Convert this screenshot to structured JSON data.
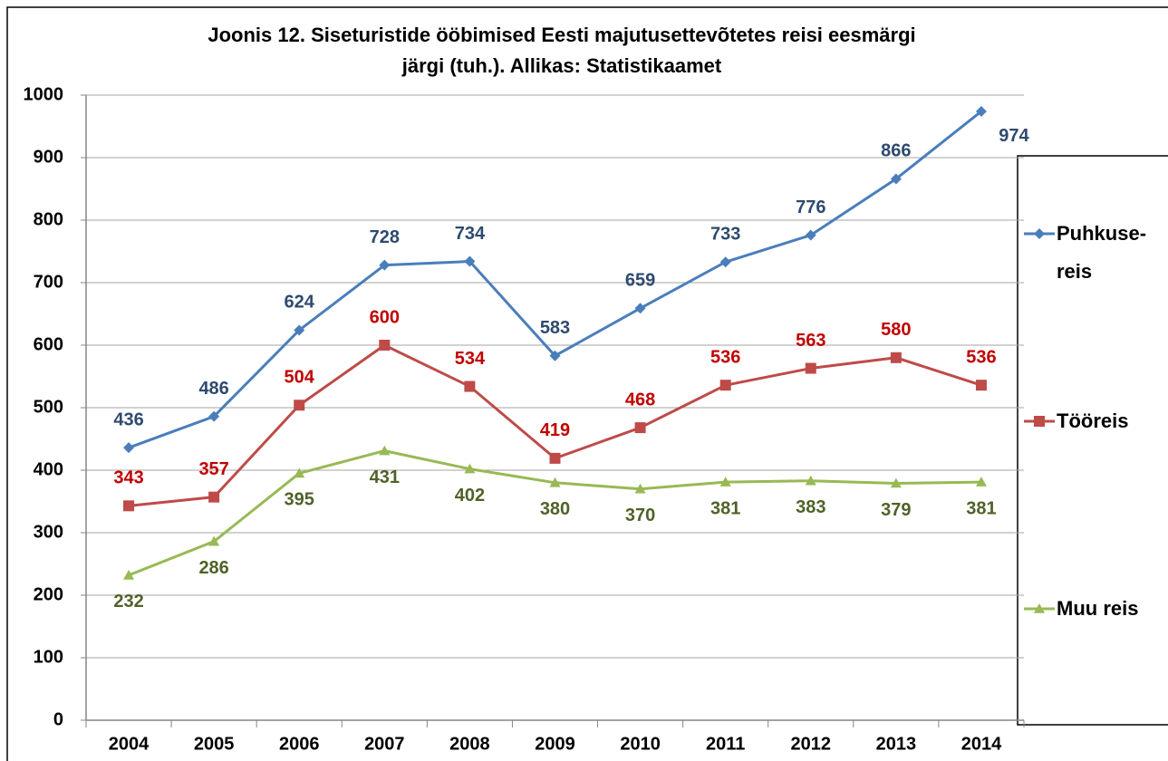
{
  "chart_data": {
    "type": "line",
    "title": "Joonis 12. Siseturistide ööbimised Eesti majutusettevõtetes reisi eesmärgi järgi (tuh.). Allikas: Statistikaamet",
    "categories": [
      "2004",
      "2005",
      "2006",
      "2007",
      "2008",
      "2009",
      "2010",
      "2011",
      "2012",
      "2013",
      "2014"
    ],
    "series": [
      {
        "name": "Puhkuse-reis",
        "color": "#4a7ebb",
        "label_color": "#2e4a6e",
        "marker": "diamond",
        "values": [
          436,
          486,
          624,
          728,
          734,
          583,
          659,
          733,
          776,
          866,
          974
        ]
      },
      {
        "name": "Tööreis",
        "color": "#be4b48",
        "label_color": "#c00000",
        "marker": "square",
        "values": [
          343,
          357,
          504,
          600,
          534,
          419,
          468,
          536,
          563,
          580,
          536
        ]
      },
      {
        "name": "Muu reis",
        "color": "#98b954",
        "label_color": "#4f6228",
        "marker": "triangle",
        "values": [
          232,
          286,
          395,
          431,
          402,
          380,
          370,
          381,
          383,
          379,
          381
        ]
      }
    ],
    "ylim": [
      0,
      1000
    ],
    "yticks": [
      0,
      100,
      200,
      300,
      400,
      500,
      600,
      700,
      800,
      900,
      1000
    ],
    "grid": true,
    "legend": "right"
  }
}
